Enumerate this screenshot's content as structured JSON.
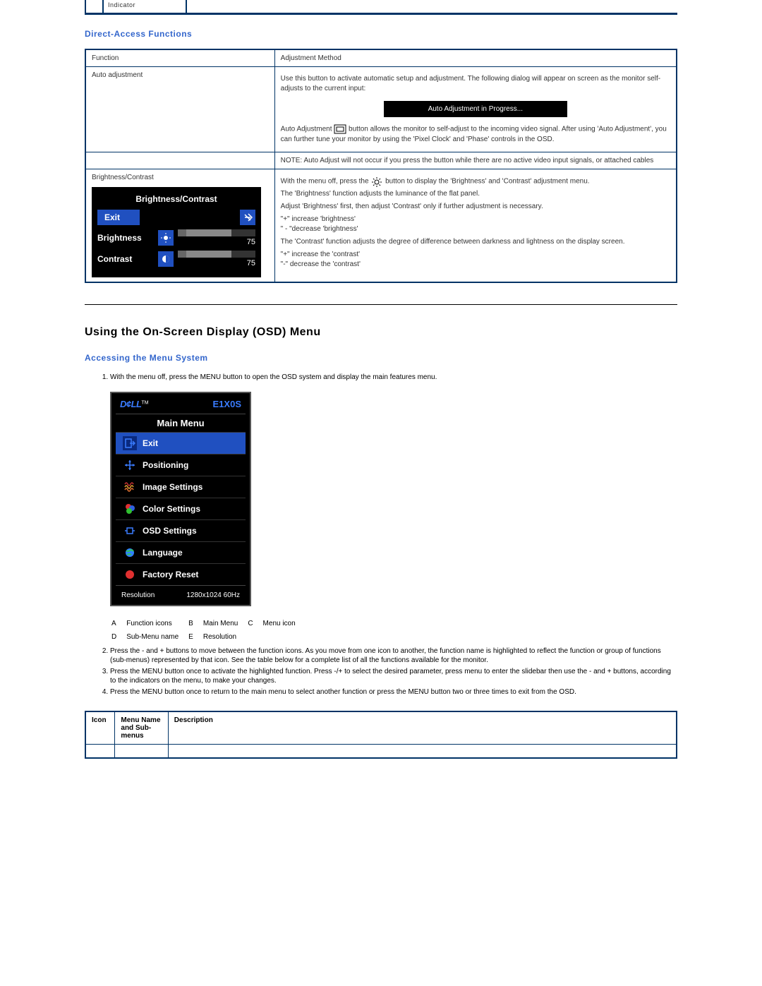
{
  "top": {
    "indicator": "Indicator"
  },
  "section1": {
    "title": "Direct-Access Functions",
    "headers": {
      "function": "Function",
      "method": "Adjustment Method"
    },
    "auto": {
      "label": "Auto adjustment",
      "desc1": "Use this button to activate automatic setup and adjustment. The following dialog will appear on screen as the monitor self-adjusts to the current input:",
      "progress": "Auto Adjustment in Progress...",
      "desc2a": "Auto Adjustment ",
      "desc2b": "button allows the monitor to self-adjust to the incoming video signal. After using 'Auto Adjustment', you can further tune your monitor by using the 'Pixel Clock' and 'Phase' controls in the OSD.",
      "note": "NOTE: Auto Adjust will not occur if you press the button while there are no active video input signals, or attached cables"
    },
    "bc": {
      "label": "Brightness/Contrast",
      "panel_title": "Brightness/Contrast",
      "exit": "Exit",
      "brightness_label": "Brightness",
      "contrast_label": "Contrast",
      "brightness_val": "75",
      "contrast_val": "75",
      "p1a": "With the menu off, press the ",
      "p1b": " button to display the 'Brightness' and 'Contrast' adjustment menu.",
      "p2": "The 'Brightness' function adjusts the luminance of the flat panel.",
      "p3": "Adjust 'Brightness' first, then adjust 'Contrast' only if further adjustment is necessary.",
      "p4": "\"+\" increase 'brightness'",
      "p5": "\" - \"decrease 'brightness'",
      "p6": "The 'Contrast' function adjusts the degree of difference between darkness and lightness on the display screen.",
      "p7": "\"+\" increase the 'contrast'",
      "p8": "\"-\" decrease the 'contrast'"
    }
  },
  "section2": {
    "title": "Using the On-Screen Display (OSD) Menu",
    "subtitle": "Accessing the Menu System",
    "step1": "With the menu off, press the MENU button to open the OSD system and display the main features menu.",
    "osd": {
      "brand": "D¢LL",
      "tm": "TM",
      "model": "E1X0S",
      "main_menu": "Main Menu",
      "items": [
        {
          "label": "Exit",
          "icon": "exit",
          "color": "#3a7cff"
        },
        {
          "label": "Positioning",
          "icon": "position",
          "color": "#3a7cff"
        },
        {
          "label": "Image Settings",
          "icon": "image",
          "color": "#e07030"
        },
        {
          "label": "Color Settings",
          "icon": "color",
          "color": "#30c030"
        },
        {
          "label": "OSD Settings",
          "icon": "osd",
          "color": "#3a7cff"
        },
        {
          "label": "Language",
          "icon": "language",
          "color": "#3080ff"
        },
        {
          "label": "Factory Reset",
          "icon": "reset",
          "color": "#e03030"
        }
      ],
      "footer_left": "Resolution",
      "footer_right": "1280x1024 60Hz"
    },
    "legend": {
      "A": "Function icons",
      "B": "Main Menu",
      "C": "Menu icon",
      "D": "Sub-Menu name",
      "E": "Resolution"
    },
    "step2": "Press the - and + buttons to move between the function icons. As you move from one icon to another, the function name is highlighted to reflect the function or group of functions (sub-menus) represented by that icon. See the table below for a complete list of all the functions available for the monitor.",
    "step3": "Press the MENU button once to activate the highlighted function. Press -/+ to select the desired parameter, press menu to enter the slidebar then use the - and + buttons, according to the indicators on the menu, to make your changes.",
    "step4": "Press the MENU button once to return to the main menu to select another function or press the MENU button two or three times to exit from the OSD."
  },
  "table2": {
    "h1": "Icon",
    "h2": "Menu Name and Sub-menus",
    "h3": "Description"
  },
  "colors": {
    "border": "#003366",
    "link": "#3366cc",
    "osd_bg": "#000000",
    "osd_sel": "#2050c0"
  }
}
